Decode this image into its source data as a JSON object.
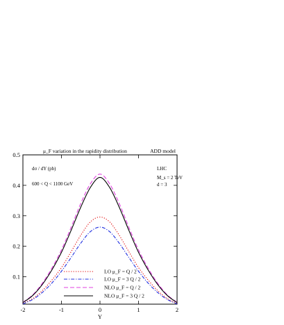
{
  "chart_data": {
    "type": "line",
    "title": "μ_F variation in the rapidity distribution",
    "title_right": "ADD model",
    "xlabel": "Y",
    "ylabel": "dσ / dY (pb)",
    "xlim": [
      -2,
      2
    ],
    "ylim": [
      0.01,
      0.5
    ],
    "x_ticks": [
      -2,
      -1,
      0,
      1,
      2
    ],
    "y_ticks": [
      0.1,
      0.2,
      0.3,
      0.4,
      0.5
    ],
    "annotations": {
      "cut": "600 < Q < 1100 GeV",
      "collider": "LHC",
      "ms": "M_s = 2 TeV",
      "d": "d = 3"
    },
    "legend_position": "bottom-center",
    "series": [
      {
        "name": "LO  μ_F = Q / 2",
        "color": "#e00000",
        "dash": "1.2 2.2",
        "x": [
          -2,
          -1.75,
          -1.5,
          -1.25,
          -1,
          -0.75,
          -0.5,
          -0.25,
          0,
          0.25,
          0.5,
          0.75,
          1,
          1.25,
          1.5,
          1.75,
          2
        ],
        "y": [
          0.012,
          0.028,
          0.054,
          0.089,
          0.13,
          0.182,
          0.236,
          0.28,
          0.296,
          0.28,
          0.236,
          0.182,
          0.13,
          0.089,
          0.054,
          0.028,
          0.012
        ]
      },
      {
        "name": "LO  μ_F = 3 Q / 2",
        "color": "#2030e0",
        "dash": "5 2 1.2 2",
        "x": [
          -2,
          -1.75,
          -1.5,
          -1.25,
          -1,
          -0.75,
          -0.5,
          -0.25,
          0,
          0.25,
          0.5,
          0.75,
          1,
          1.25,
          1.5,
          1.75,
          2
        ],
        "y": [
          0.011,
          0.025,
          0.048,
          0.079,
          0.118,
          0.163,
          0.21,
          0.248,
          0.263,
          0.248,
          0.21,
          0.163,
          0.118,
          0.079,
          0.048,
          0.025,
          0.011
        ]
      },
      {
        "name": "NLO  μ_F = Q / 2",
        "color": "#e040e0",
        "dash": "6 3",
        "x": [
          -2,
          -1.75,
          -1.5,
          -1.25,
          -1,
          -0.75,
          -0.5,
          -0.25,
          0,
          0.25,
          0.5,
          0.75,
          1,
          1.25,
          1.5,
          1.75,
          2
        ],
        "y": [
          0.016,
          0.04,
          0.078,
          0.128,
          0.188,
          0.262,
          0.34,
          0.405,
          0.437,
          0.405,
          0.34,
          0.262,
          0.188,
          0.128,
          0.078,
          0.04,
          0.016
        ]
      },
      {
        "name": "NLO  μ_F = 3 Q / 2",
        "color": "#000000",
        "dash": "",
        "x": [
          -2,
          -1.75,
          -1.5,
          -1.25,
          -1,
          -0.75,
          -0.5,
          -0.25,
          0,
          0.25,
          0.5,
          0.75,
          1,
          1.25,
          1.5,
          1.75,
          2
        ],
        "y": [
          0.015,
          0.038,
          0.074,
          0.122,
          0.18,
          0.252,
          0.328,
          0.393,
          0.426,
          0.393,
          0.328,
          0.252,
          0.18,
          0.122,
          0.074,
          0.038,
          0.015
        ]
      }
    ]
  }
}
